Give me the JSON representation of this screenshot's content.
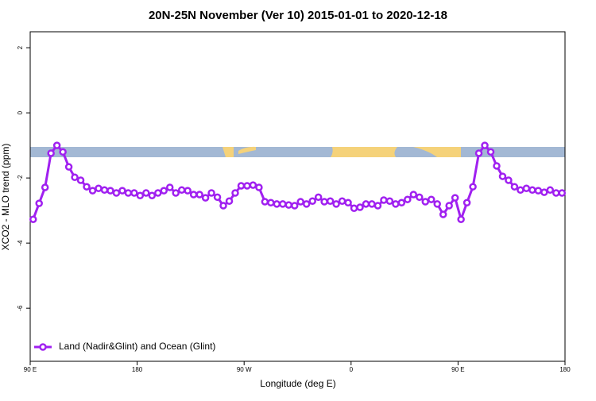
{
  "chart_data": {
    "type": "line",
    "title": "20N-25N November (Ver 10)   2015-01-01 to 2020-12-18",
    "x_label": "Longitude (deg E)",
    "y_label": "XCO2 - MLO trend (ppm)",
    "x": [
      92.5,
      97.5,
      102.5,
      107.5,
      112.5,
      117.5,
      122.5,
      127.5,
      132.5,
      137.5,
      142.5,
      147.5,
      152.5,
      157.5,
      162.5,
      167.5,
      172.5,
      177.5,
      182.5,
      187.5,
      192.5,
      197.5,
      202.5,
      207.5,
      212.5,
      217.5,
      222.5,
      227.5,
      232.5,
      237.5,
      242.5,
      247.5,
      252.5,
      257.5,
      262.5,
      267.5,
      272.5,
      277.5,
      282.5,
      287.5,
      292.5,
      297.5,
      302.5,
      307.5,
      312.5,
      317.5,
      322.5,
      327.5,
      332.5,
      337.5,
      342.5,
      347.5,
      352.5,
      357.5,
      362.5,
      367.5,
      372.5,
      377.5,
      382.5,
      387.5,
      392.5,
      397.5,
      402.5,
      407.5,
      412.5,
      417.5,
      422.5,
      427.5,
      432.5,
      437.5,
      442.5,
      447.5,
      452.5,
      457.5,
      462.5,
      467.5,
      472.5,
      477.5,
      482.5,
      487.5,
      492.5,
      497.5,
      502.5,
      507.5,
      512.5,
      517.5,
      522.5,
      527.5,
      532.5,
      537.5
    ],
    "series": [
      {
        "name": "Land (Nadir&Glint) and Ocean (Glint)",
        "color": "#a020f0",
        "values": [
          -3.27,
          -2.78,
          -2.29,
          -1.24,
          -1.0,
          -1.2,
          -1.66,
          -1.98,
          -2.07,
          -2.27,
          -2.39,
          -2.32,
          -2.37,
          -2.39,
          -2.46,
          -2.39,
          -2.46,
          -2.46,
          -2.54,
          -2.46,
          -2.54,
          -2.46,
          -2.39,
          -2.29,
          -2.46,
          -2.37,
          -2.39,
          -2.51,
          -2.51,
          -2.61,
          -2.46,
          -2.59,
          -2.85,
          -2.71,
          -2.46,
          -2.24,
          -2.24,
          -2.22,
          -2.29,
          -2.73,
          -2.76,
          -2.8,
          -2.8,
          -2.83,
          -2.85,
          -2.73,
          -2.8,
          -2.71,
          -2.59,
          -2.73,
          -2.71,
          -2.8,
          -2.71,
          -2.76,
          -2.93,
          -2.9,
          -2.8,
          -2.8,
          -2.85,
          -2.68,
          -2.71,
          -2.8,
          -2.76,
          -2.66,
          -2.51,
          -2.59,
          -2.73,
          -2.66,
          -2.8,
          -3.12,
          -2.85,
          -2.61,
          -3.27,
          -2.76,
          -2.27,
          -1.24,
          -1.0,
          -1.2,
          -1.63,
          -1.95,
          -2.07,
          -2.27,
          -2.37,
          -2.32,
          -2.37,
          -2.39,
          -2.44,
          -2.37,
          -2.46,
          -2.46
        ]
      }
    ],
    "xlim": [
      90,
      540
    ],
    "xticks": [
      {
        "value": 90,
        "label": "90 E"
      },
      {
        "value": 180,
        "label": "180"
      },
      {
        "value": 270,
        "label": "90 W"
      },
      {
        "value": 360,
        "label": "0"
      },
      {
        "value": 450,
        "label": "90 E"
      },
      {
        "value": 540,
        "label": "180"
      }
    ],
    "ylim": [
      -7.63,
      2.49
    ],
    "yticks": [
      2,
      0,
      -2,
      -4,
      -6
    ],
    "legend": "bottom-left"
  }
}
